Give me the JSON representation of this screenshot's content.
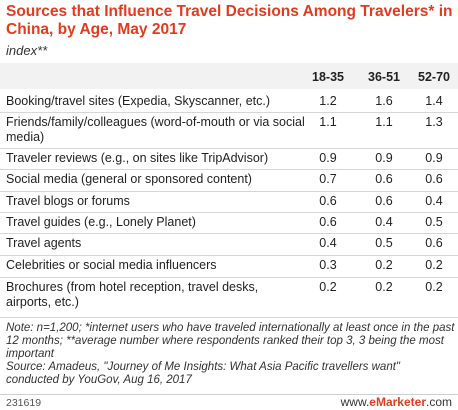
{
  "chart_data": {
    "type": "table",
    "title": "Sources that Influence Travel Decisions Among Travelers* in China, by Age, May 2017",
    "subtitle": "index**",
    "columns": [
      "18-35",
      "36-51",
      "52-70"
    ],
    "rows": [
      {
        "label": "Booking/travel sites (Expedia, Skyscanner, etc.)",
        "values": [
          "1.2",
          "1.6",
          "1.4"
        ]
      },
      {
        "label": "Friends/family/colleagues (word-of-mouth or via social media)",
        "values": [
          "1.1",
          "1.1",
          "1.3"
        ]
      },
      {
        "label": "Traveler reviews (e.g., on sites like TripAdvisor)",
        "values": [
          "0.9",
          "0.9",
          "0.9"
        ]
      },
      {
        "label": "Social media (general or sponsored content)",
        "values": [
          "0.7",
          "0.6",
          "0.6"
        ]
      },
      {
        "label": "Travel blogs or forums",
        "values": [
          "0.6",
          "0.6",
          "0.4"
        ]
      },
      {
        "label": "Travel guides (e.g., Lonely Planet)",
        "values": [
          "0.6",
          "0.4",
          "0.5"
        ]
      },
      {
        "label": "Travel agents",
        "values": [
          "0.4",
          "0.5",
          "0.6"
        ]
      },
      {
        "label": "Celebrities or social media influencers",
        "values": [
          "0.3",
          "0.2",
          "0.2"
        ]
      },
      {
        "label": "Brochures (from hotel reception, travel desks, airports, etc.)",
        "values": [
          "0.2",
          "0.2",
          "0.2"
        ]
      }
    ]
  },
  "note": "Note: n=1,200; *internet users who have traveled internationally at least once in the past 12 months; **average number where respondents ranked their top 3, 3 being the most important",
  "source": "Source: Amadeus, \"Journey of Me Insights: What Asia Pacific travellers want\" conducted by YouGov, Aug 16, 2017",
  "footer": {
    "chart_id": "231619",
    "brand_prefix": "www.",
    "brand_name": "eMarketer",
    "brand_suffix": ".com"
  },
  "colors": {
    "title": "#e23b1d",
    "header_bg": "#f2f2f2",
    "row_line": "#d6d6d6"
  }
}
